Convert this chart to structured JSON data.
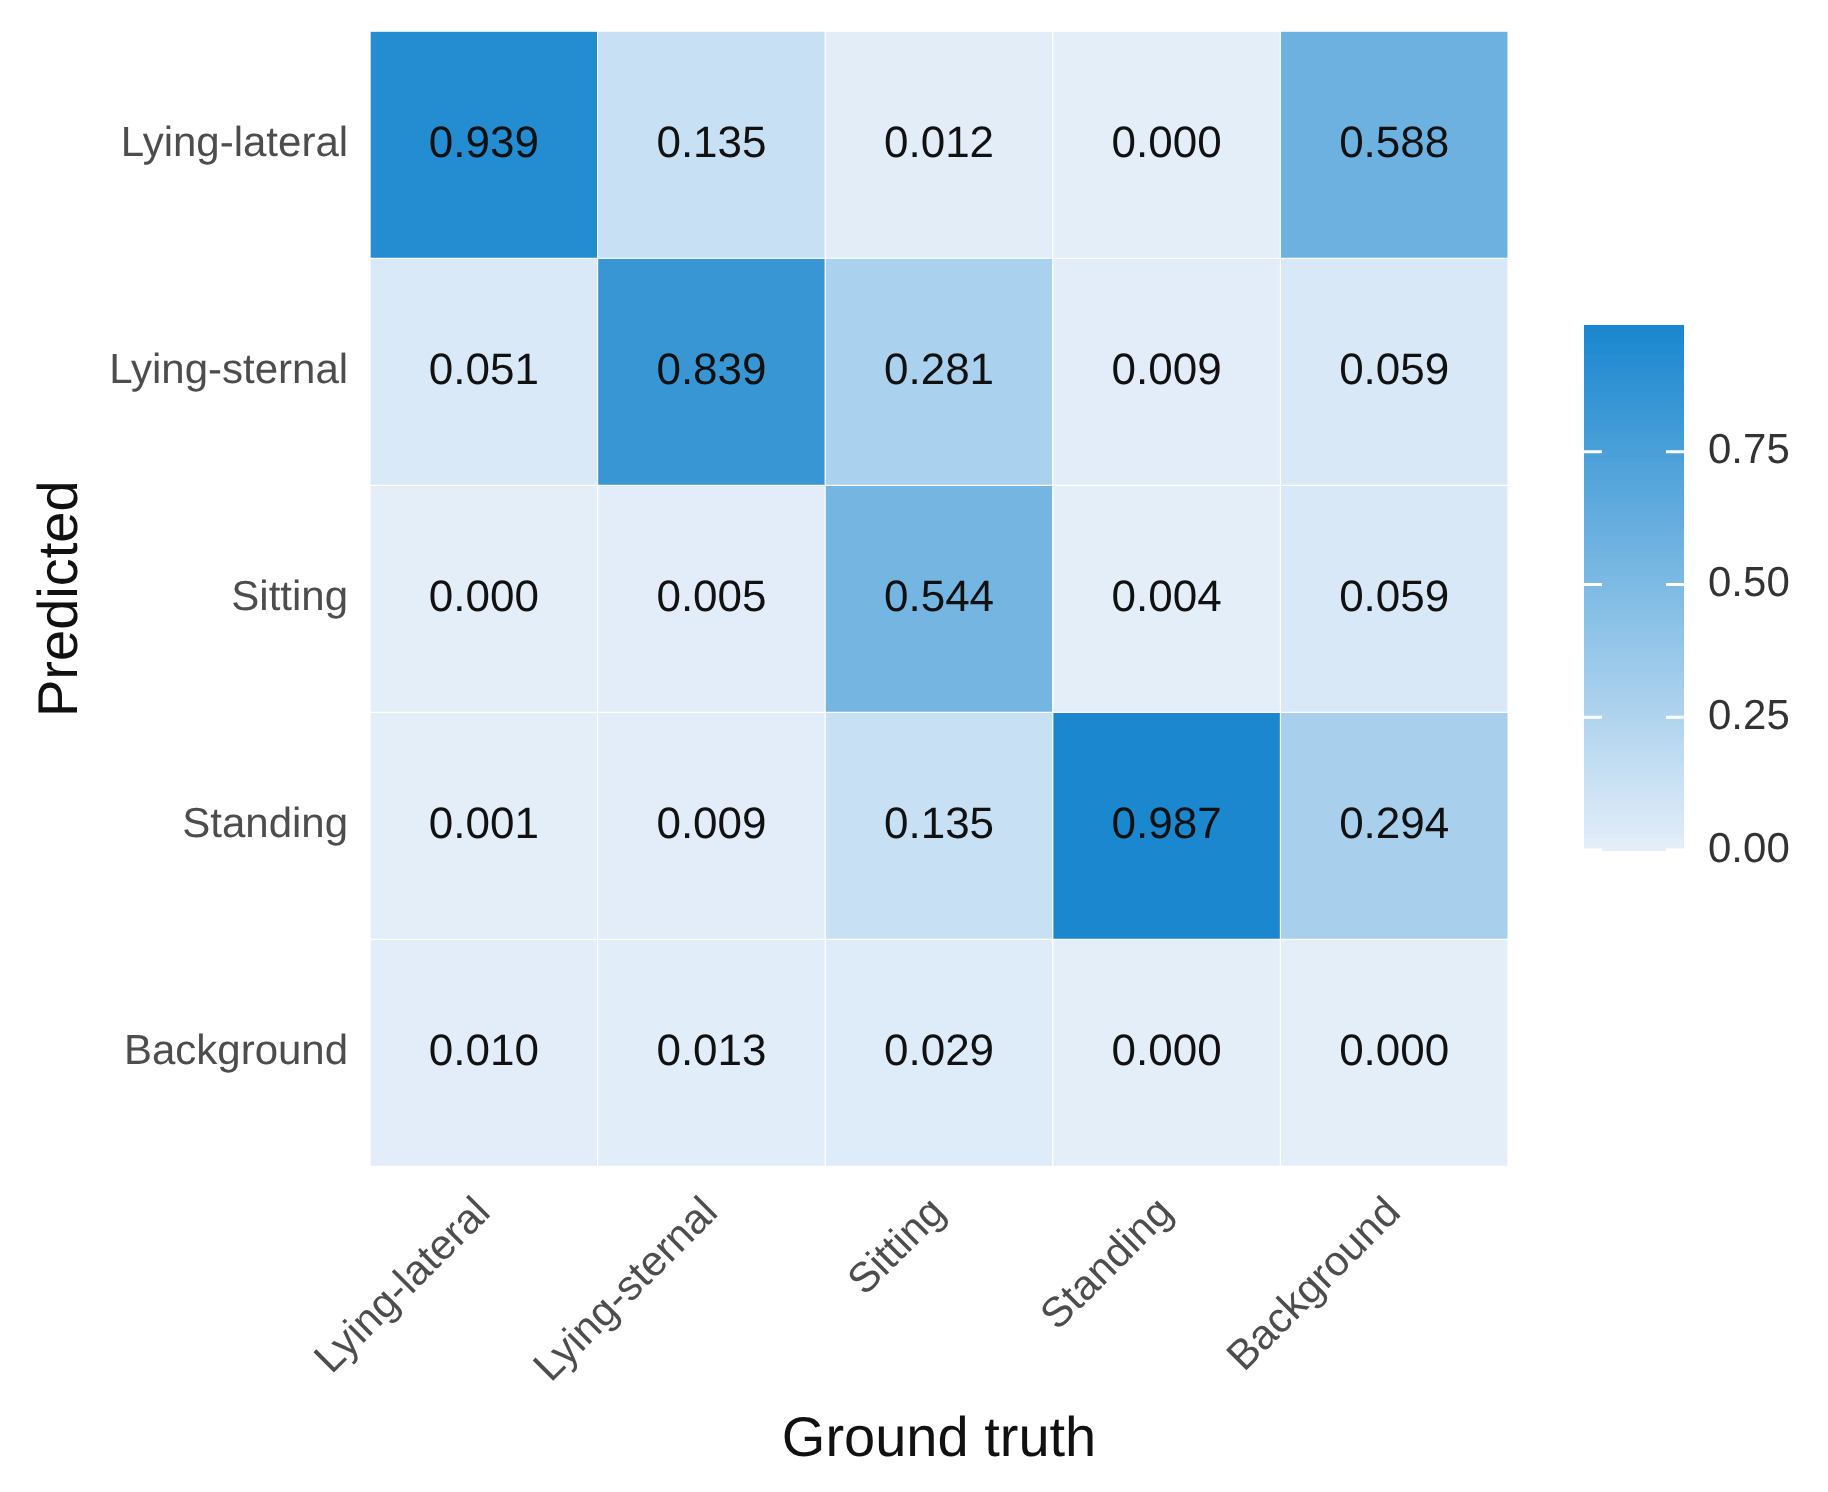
{
  "chart_data": {
    "type": "heatmap",
    "xlabel": "Ground truth",
    "ylabel": "Predicted",
    "categories": [
      "Lying-lateral",
      "Lying-sternal",
      "Sitting",
      "Standing",
      "Background"
    ],
    "y_categories": [
      "Lying-lateral",
      "Lying-sternal",
      "Sitting",
      "Standing",
      "Background"
    ],
    "cells": [
      [
        0.939,
        0.135,
        0.012,
        0.0,
        0.588
      ],
      [
        0.051,
        0.839,
        0.281,
        0.009,
        0.059
      ],
      [
        0.0,
        0.005,
        0.544,
        0.004,
        0.059
      ],
      [
        0.001,
        0.009,
        0.135,
        0.987,
        0.294
      ],
      [
        0.01,
        0.013,
        0.029,
        0.0,
        0.0
      ]
    ],
    "cell_labels": [
      [
        "0.939",
        "0.135",
        "0.012",
        "0.000",
        "0.588"
      ],
      [
        "0.051",
        "0.839",
        "0.281",
        "0.009",
        "0.059"
      ],
      [
        "0.000",
        "0.005",
        "0.544",
        "0.004",
        "0.059"
      ],
      [
        "0.001",
        "0.009",
        "0.135",
        "0.987",
        "0.294"
      ],
      [
        "0.010",
        "0.013",
        "0.029",
        "0.000",
        "0.000"
      ]
    ],
    "clim": [
      0,
      0.987
    ],
    "cticks": [
      {
        "value": 0,
        "label": "0.00"
      },
      {
        "value": 0.25,
        "label": "0.25"
      },
      {
        "value": 0.5,
        "label": "0.50"
      },
      {
        "value": 0.75,
        "label": "0.75"
      }
    ],
    "colors": [
      "#e4eef9",
      "#1a87cf"
    ]
  }
}
